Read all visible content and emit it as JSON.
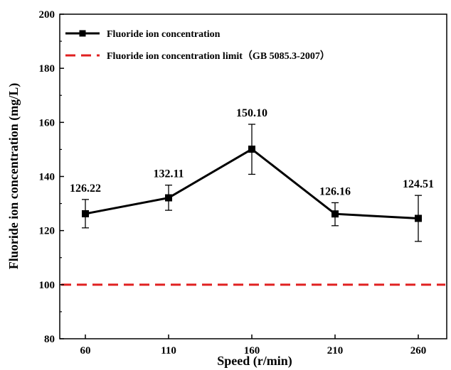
{
  "chart_data": {
    "type": "line",
    "title": "",
    "xlabel": "Speed (r/min)",
    "ylabel": "Fluoride ion concentration (mg/L)",
    "categories": [
      "60",
      "110",
      "160",
      "210",
      "260"
    ],
    "ylim": [
      80,
      200
    ],
    "yticks": [
      "80",
      "100",
      "120",
      "140",
      "160",
      "180",
      "200"
    ],
    "grid": false,
    "legend_position": "top-left",
    "series": [
      {
        "name": "Fluoride ion concentration",
        "color": "#000000",
        "marker": "square",
        "values": [
          126.22,
          132.11,
          150.1,
          126.16,
          124.51
        ],
        "error_low": [
          121.0,
          127.5,
          140.8,
          121.8,
          116.0
        ],
        "error_high": [
          131.5,
          136.8,
          159.3,
          130.3,
          133.0
        ],
        "labels": [
          "126.22",
          "132.11",
          "150.10",
          "126.16",
          "124.51"
        ]
      }
    ],
    "reference_line": {
      "name": "Fluoride ion concentration limit（GB 5085.3-2007）",
      "value": 100,
      "color": "#e02020",
      "style": "dashed"
    }
  }
}
